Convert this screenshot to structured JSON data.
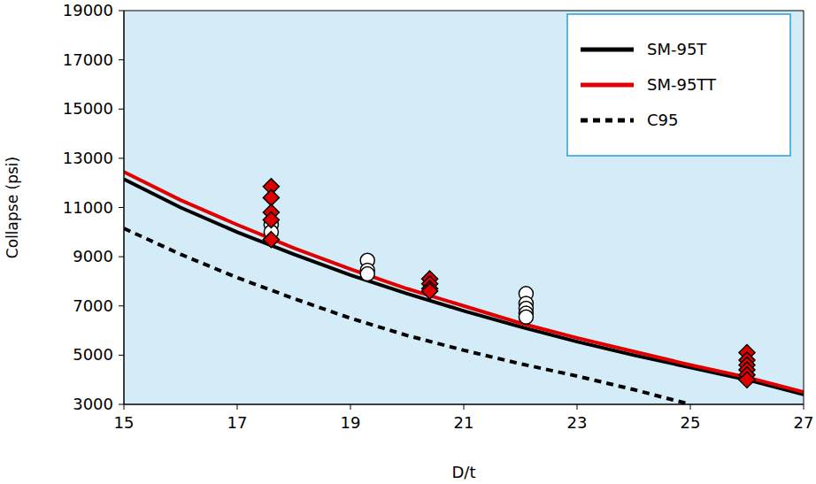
{
  "chart_data": {
    "type": "line",
    "x_label": "D/t",
    "y_label": "Collapse (psi)",
    "xlim": [
      15,
      27
    ],
    "xticks": [
      15,
      17,
      19,
      21,
      23,
      25,
      27
    ],
    "ylim": [
      3000,
      19000
    ],
    "yticks": [
      3000,
      5000,
      7000,
      9000,
      11000,
      13000,
      15000,
      17000,
      19000
    ],
    "grid": false,
    "legend": "top-right",
    "series": [
      {
        "name": "SM-95T",
        "type": "line",
        "color": "#000000",
        "line_style": "solid",
        "x": [
          15,
          16,
          17,
          18,
          19,
          20,
          21,
          22,
          23,
          24,
          25,
          26,
          27
        ],
        "values": [
          12150,
          11000,
          10000,
          9100,
          8250,
          7500,
          6800,
          6150,
          5550,
          5000,
          4500,
          4000,
          3400
        ]
      },
      {
        "name": "SM-95TT",
        "type": "line",
        "color": "#e00000",
        "line_style": "solid",
        "x": [
          15,
          16,
          17,
          18,
          19,
          20,
          21,
          22,
          23,
          24,
          25,
          26,
          27
        ],
        "values": [
          12450,
          11300,
          10300,
          9350,
          8500,
          7700,
          7000,
          6300,
          5700,
          5150,
          4600,
          4100,
          3500
        ]
      },
      {
        "name": "C95",
        "type": "line",
        "color": "#000000",
        "line_style": "dashed",
        "x": [
          15,
          16,
          17,
          18,
          19,
          20,
          21,
          22,
          23,
          24,
          25
        ],
        "values": [
          10150,
          9100,
          8150,
          7300,
          6500,
          5800,
          5200,
          4650,
          4150,
          3600,
          3000
        ]
      },
      {
        "type": "scatter",
        "marker": "circle",
        "color": "#ffffff",
        "x": [
          17.6,
          17.6,
          19.3,
          19.3,
          19.3,
          22.1,
          22.1,
          22.1,
          22.1,
          22.1
        ],
        "values": [
          10300,
          10000,
          8850,
          8450,
          8300,
          7500,
          7100,
          6900,
          6700,
          6550
        ]
      },
      {
        "type": "scatter",
        "marker": "diamond",
        "color": "#e00000",
        "x": [
          17.6,
          17.6,
          17.6,
          17.6,
          17.6,
          20.4,
          20.4,
          20.4,
          20.4,
          26,
          26,
          26,
          26,
          26,
          26
        ],
        "values": [
          11850,
          11400,
          10800,
          10500,
          9700,
          8100,
          7900,
          7700,
          7600,
          5100,
          4800,
          4600,
          4400,
          4200,
          4000
        ]
      }
    ]
  }
}
